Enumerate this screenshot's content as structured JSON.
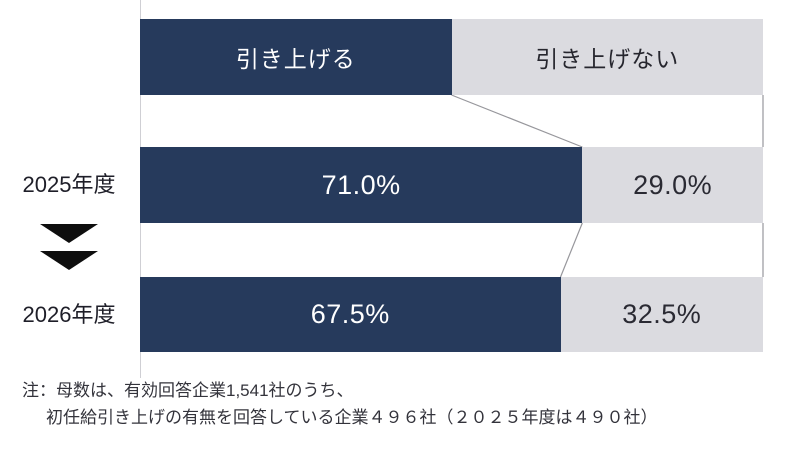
{
  "note": {
    "line1": "注：母数は、有効回答企業1,541社のうち、",
    "line2": "初任給引き上げの有無を回答している企業４９６社（２０２５年度は４９０社）"
  },
  "colors": {
    "raise_fill": "#263A5C",
    "no_raise_fill": "#DBDBE0",
    "raise_label_text": "#FFFFFF",
    "no_raise_label_text": "#2A2A33",
    "category_text": "#1E1E28",
    "note_text": "#33333B",
    "connector_line": "#97979C",
    "axis_line": "#CFCFD4",
    "arrow": "#0E0E0E",
    "background": "#FFFFFF"
  },
  "icons": {
    "down_arrow": "down-triangle"
  },
  "chart_data": {
    "type": "bar",
    "variant": "horizontal-stacked-100-percent",
    "categories": [
      "2025年度",
      "2026年度"
    ],
    "series": [
      {
        "name": "引き上げる",
        "values": [
          71.0,
          67.5
        ],
        "color": "#263A5C",
        "label_color": "#FFFFFF"
      },
      {
        "name": "引き上げない",
        "values": [
          29.0,
          32.5
        ],
        "color": "#DBDBE0",
        "label_color": "#2A2A33"
      }
    ],
    "value_labels": [
      [
        "71.0%",
        "29.0%"
      ],
      [
        "67.5%",
        "32.5%"
      ]
    ],
    "xlim": [
      0,
      100
    ],
    "grid": false,
    "legend_position": "top",
    "annotations": [
      "注：母数は、有効回答企業1,541社のうち、",
      "初任給引き上げの有無を回答している企業４９６社（２０２５年度は４９０社）"
    ]
  }
}
